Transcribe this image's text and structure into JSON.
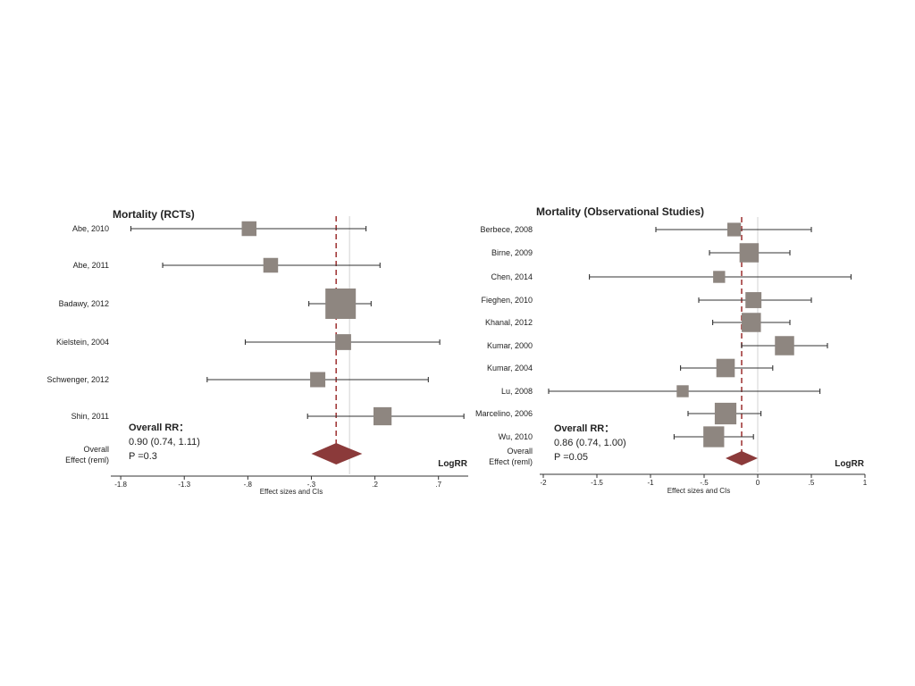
{
  "colors": {
    "box": "#8e8680",
    "line": "#333333",
    "diamond": "#8b3a3a",
    "dashed": "#a23b3b",
    "axis": "#333333"
  },
  "chart_data": [
    {
      "type": "forest",
      "title": "Mortality (RCTs)",
      "xlabel": "Effect sizes and CIs",
      "axis_tag": "LogRR",
      "xlim": [
        -1.85,
        0.92
      ],
      "ticks": [
        -1.8,
        -1.3,
        -0.8,
        -0.3,
        0.2,
        0.7
      ],
      "tick_labels": [
        "-1.8",
        "-1.3",
        "-.8",
        "-.3",
        ".2",
        ".7"
      ],
      "pooled_estimate": -0.105,
      "null_line": 0,
      "studies": [
        {
          "label": "Abe, 2010",
          "estimate": -0.79,
          "ci": [
            -1.72,
            0.13
          ],
          "weight": 0.3
        },
        {
          "label": "Abe, 2011",
          "estimate": -0.62,
          "ci": [
            -1.47,
            0.24
          ],
          "weight": 0.3
        },
        {
          "label": "Badawy, 2012",
          "estimate": -0.07,
          "ci": [
            -0.32,
            0.17
          ],
          "weight": 1.0
        },
        {
          "label": "Kielstein, 2004",
          "estimate": -0.05,
          "ci": [
            -0.82,
            0.71
          ],
          "weight": 0.35
        },
        {
          "label": "Schwenger, 2012",
          "estimate": -0.25,
          "ci": [
            -1.12,
            0.62
          ],
          "weight": 0.32
        },
        {
          "label": "Shin, 2011",
          "estimate": 0.26,
          "ci": [
            -0.33,
            0.9
          ],
          "weight": 0.45
        }
      ],
      "overall": {
        "label_line1": "Overall",
        "label_line2": "Effect  (reml)",
        "estimate": -0.105,
        "ci": [
          -0.3,
          0.1
        ],
        "text_line1": "Overall RR：",
        "text_line2": "0.90 (0.74, 1.11)",
        "text_line3": "P =0.3"
      }
    },
    {
      "type": "forest",
      "title": "Mortality (Observational Studies)",
      "xlabel": "Effect sizes and CIs",
      "axis_tag": "LogRR",
      "xlim": [
        -2,
        1
      ],
      "ticks": [
        -2,
        -1.5,
        -1,
        -0.5,
        0,
        0.5,
        1
      ],
      "tick_labels": [
        "-2",
        "-1.5",
        "-1",
        "-.5",
        "0",
        ".5",
        "1"
      ],
      "pooled_estimate": -0.15,
      "null_line": 0,
      "studies": [
        {
          "label": "Berbece, 2008",
          "estimate": -0.22,
          "ci": [
            -0.95,
            0.5
          ],
          "weight": 0.4
        },
        {
          "label": "Birne, 2009",
          "estimate": -0.08,
          "ci": [
            -0.45,
            0.3
          ],
          "weight": 0.75
        },
        {
          "label": "Chen, 2014",
          "estimate": -0.36,
          "ci": [
            -1.57,
            0.87
          ],
          "weight": 0.3
        },
        {
          "label": "Fieghen, 2010",
          "estimate": -0.04,
          "ci": [
            -0.55,
            0.5
          ],
          "weight": 0.55
        },
        {
          "label": "Khanal, 2012",
          "estimate": -0.06,
          "ci": [
            -0.42,
            0.3
          ],
          "weight": 0.75
        },
        {
          "label": "Kumar, 2000",
          "estimate": 0.25,
          "ci": [
            -0.15,
            0.65
          ],
          "weight": 0.75
        },
        {
          "label": "Kumar, 2004",
          "estimate": -0.3,
          "ci": [
            -0.72,
            0.14
          ],
          "weight": 0.7
        },
        {
          "label": "Lu, 2008",
          "estimate": -0.7,
          "ci": [
            -1.95,
            0.58
          ],
          "weight": 0.3
        },
        {
          "label": "Marcelino, 2006",
          "estimate": -0.3,
          "ci": [
            -0.65,
            0.03
          ],
          "weight": 0.9
        },
        {
          "label": "Wu, 2010",
          "estimate": -0.41,
          "ci": [
            -0.78,
            -0.04
          ],
          "weight": 0.85
        }
      ],
      "overall": {
        "label_line1": "Overall",
        "label_line2": "Effect (reml)",
        "estimate": -0.15,
        "ci": [
          -0.3,
          0.0
        ],
        "text_line1": "Overall RR：",
        "text_line2": "0.86 (0.74, 1.00)",
        "text_line3": "P =0.05"
      }
    }
  ]
}
